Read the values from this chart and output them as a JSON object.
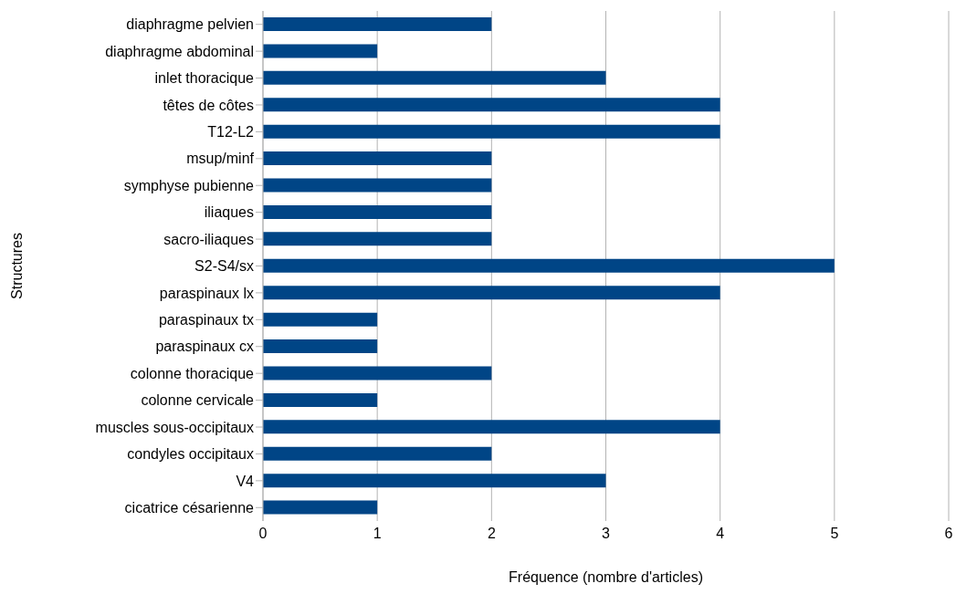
{
  "chart_data": {
    "type": "bar",
    "orientation": "horizontal",
    "xlabel": "Fréquence (nombre d'articles)",
    "ylabel": "Structures",
    "categories": [
      "diaphragme pelvien",
      "diaphragme abdominal",
      "inlet thoracique",
      "têtes de côtes",
      "T12-L2",
      "msup/minf",
      "symphyse pubienne",
      "iliaques",
      "sacro-iliaques",
      "S2-S4/sx",
      "paraspinaux lx",
      "paraspinaux tx",
      "paraspinaux cx",
      "colonne thoracique",
      "colonne cervicale",
      "muscles sous-occipitaux",
      "condyles occipitaux",
      "V4",
      "cicatrice césarienne"
    ],
    "values": [
      2,
      1,
      3,
      4,
      4,
      2,
      2,
      2,
      2,
      5,
      4,
      1,
      1,
      2,
      1,
      4,
      2,
      3,
      1
    ],
    "color": "#004586",
    "xlim": [
      0,
      6
    ],
    "xticks": [
      0,
      1,
      2,
      3,
      4,
      5,
      6
    ],
    "grid": "x"
  }
}
